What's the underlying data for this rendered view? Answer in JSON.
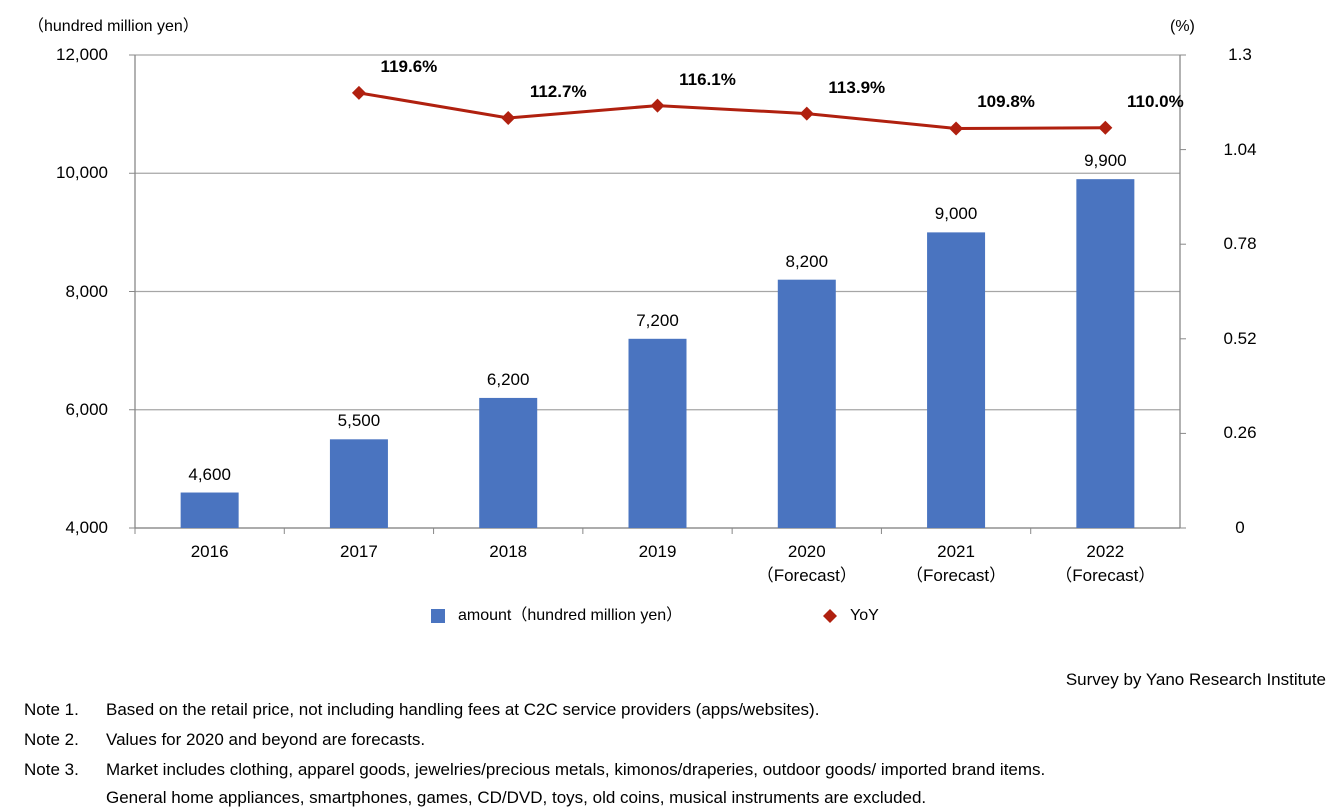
{
  "chart_data": {
    "type": "bar-line",
    "y_label": "（hundred million yen）",
    "y2_label": "(%)",
    "categories": [
      "2016",
      "2017",
      "2018",
      "2019",
      "2020\n（Forecast）",
      "2021\n（Forecast）",
      "2022\n（Forecast）"
    ],
    "series": [
      {
        "name": "amount（hundred million yen）",
        "type": "bar",
        "color": "#4a74c0",
        "axis": "y",
        "values": [
          4600,
          5500,
          6200,
          7200,
          8200,
          9000,
          9900
        ],
        "value_labels": [
          "4,600",
          "5,500",
          "6,200",
          "7,200",
          "8,200",
          "9,000",
          "9,900"
        ]
      },
      {
        "name": "YoY",
        "type": "line",
        "color": "#b0200f",
        "axis": "y2",
        "values": [
          null,
          1.196,
          1.127,
          1.161,
          1.139,
          1.098,
          1.1
        ],
        "value_labels": [
          null,
          "119.6%",
          "112.7%",
          "116.1%",
          "113.9%",
          "109.8%",
          "110.0%"
        ]
      }
    ],
    "ylim": [
      4000,
      12000
    ],
    "yticks": [
      {
        "value": 4000,
        "label": "4,000"
      },
      {
        "value": 6000,
        "label": "6,000"
      },
      {
        "value": 8000,
        "label": "8,000"
      },
      {
        "value": 10000,
        "label": "10,000"
      },
      {
        "value": 12000,
        "label": "12,000"
      }
    ],
    "y2lim": [
      0,
      1.3
    ],
    "y2ticks": [
      0,
      0.26,
      0.52,
      0.78,
      1.04,
      1.3
    ],
    "grid": true
  },
  "source": "Survey by Yano Research Institute",
  "notes": [
    {
      "label": "Note 1.",
      "text": "Based on the retail price,  not including handling fees at C2C service providers (apps/websites)."
    },
    {
      "label": "Note 2.",
      "text": "Values for 2020 and beyond are forecasts."
    },
    {
      "label": "Note 3.",
      "text": "Market includes clothing, apparel goods, jewelries/precious metals, kimonos/draperies, outdoor goods/ imported brand items.\nGeneral home appliances, smartphones, games, CD/DVD, toys, old coins, musical instruments are excluded."
    }
  ]
}
